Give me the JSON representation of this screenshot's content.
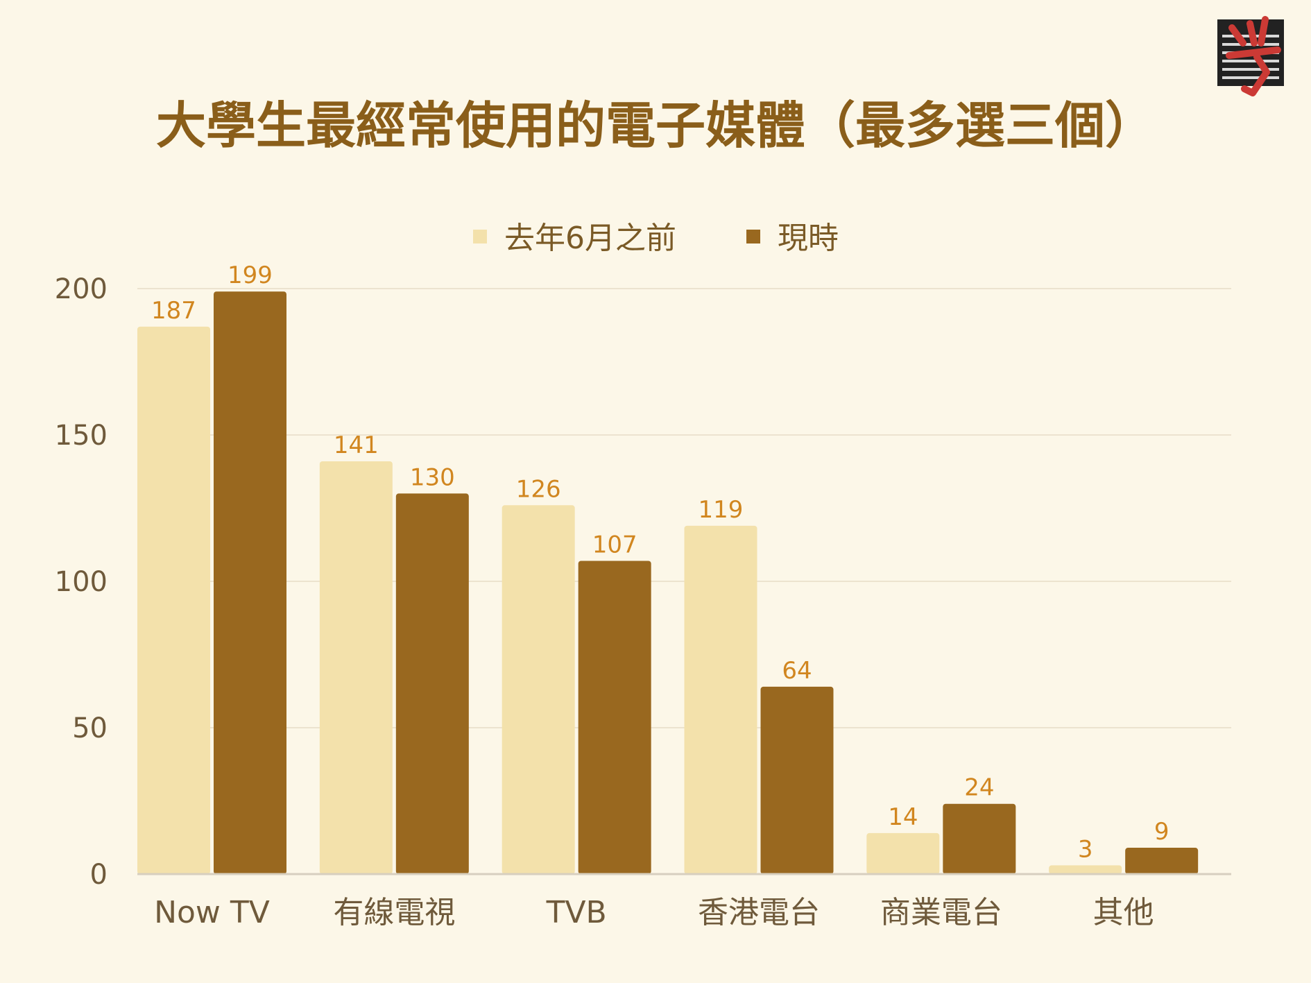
{
  "chart_data": {
    "type": "bar",
    "title": "大學生最經常使用的電子媒體（最多選三個）",
    "categories": [
      "Now TV",
      "有線電視",
      "TVB",
      "香港電台",
      "商業電台",
      "其他"
    ],
    "series": [
      {
        "name": "去年6月之前",
        "values": [
          187,
          141,
          126,
          119,
          14,
          3
        ],
        "color": "#f3e1ab"
      },
      {
        "name": "現時",
        "values": [
          199,
          130,
          107,
          64,
          24,
          9
        ],
        "color": "#99681f"
      }
    ],
    "ylim": [
      0,
      200
    ],
    "yticks": [
      0,
      50,
      100,
      150,
      200
    ],
    "grid": true,
    "legend_position": "top-center",
    "data_labels": true,
    "logo_color": "#cb3a35"
  }
}
